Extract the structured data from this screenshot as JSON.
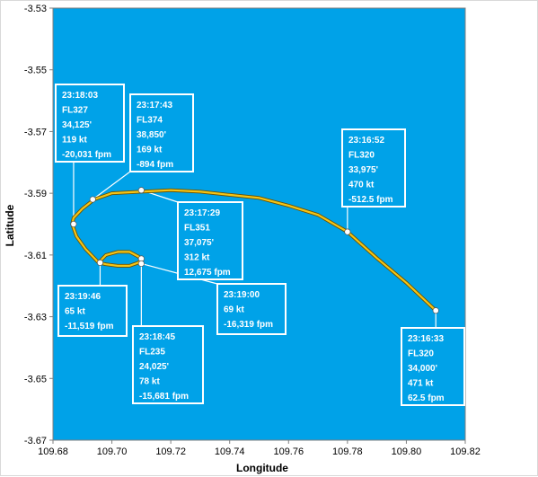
{
  "colors": {
    "plot_bg": "#00a2e8",
    "track": "#f4c416",
    "track_edge": "#6b5200",
    "callout_border": "#ffffff",
    "callout_fill": "#00a2e8",
    "point": "#ffffff"
  },
  "chart_data": {
    "type": "line",
    "title": "",
    "xlabel": "Longitude",
    "ylabel": "Latitude",
    "xlim": [
      109.68,
      109.82
    ],
    "ylim": [
      -3.67,
      -3.53
    ],
    "grid": false,
    "xticks": [
      "109.68",
      "109.70",
      "109.72",
      "109.74",
      "109.76",
      "109.78",
      "109.80",
      "109.82"
    ],
    "yticks": [
      "-3.53",
      "-3.55",
      "-3.57",
      "-3.59",
      "-3.61",
      "-3.63",
      "-3.65",
      "-3.67"
    ],
    "series": [
      {
        "x": [
          109.81,
          109.8,
          109.79,
          109.78,
          109.77,
          109.76,
          109.75,
          109.74,
          109.73,
          109.72,
          109.71,
          109.7,
          109.694,
          109.69,
          109.687,
          109.6865,
          109.688,
          109.691,
          109.694,
          109.6955,
          109.698,
          109.702,
          109.706,
          109.709,
          109.71,
          109.709,
          109.706,
          109.702,
          109.698,
          109.6955,
          109.6955
        ],
        "y": [
          -3.628,
          -3.619,
          -3.611,
          -3.6025,
          -3.597,
          -3.594,
          -3.5915,
          -3.5905,
          -3.5895,
          -3.589,
          -3.5895,
          -3.59,
          -3.592,
          -3.595,
          -3.598,
          -3.6,
          -3.604,
          -3.608,
          -3.611,
          -3.6125,
          -3.61,
          -3.609,
          -3.609,
          -3.6105,
          -3.6115,
          -3.6125,
          -3.6135,
          -3.6135,
          -3.613,
          -3.6125,
          -3.6125
        ]
      }
    ],
    "points": [
      {
        "x": 109.81,
        "y": -3.628
      },
      {
        "x": 109.78,
        "y": -3.6025
      },
      {
        "x": 109.71,
        "y": -3.589
      },
      {
        "x": 109.6935,
        "y": -3.592
      },
      {
        "x": 109.687,
        "y": -3.6
      },
      {
        "x": 109.71,
        "y": -3.6112
      },
      {
        "x": 109.71,
        "y": -3.6128
      },
      {
        "x": 109.696,
        "y": -3.6125
      }
    ],
    "annotations": [
      {
        "lines": [
          "23:16:33",
          "FL320",
          "34,000'",
          "471 kt",
          "62.5 fpm"
        ]
      },
      {
        "lines": [
          "23:16:52",
          "FL320",
          "33,975'",
          "470 kt",
          "-512.5 fpm"
        ]
      },
      {
        "lines": [
          "23:17:29",
          "FL351",
          "37,075'",
          "312 kt",
          "12,675 fpm"
        ]
      },
      {
        "lines": [
          "23:17:43",
          "FL374",
          "38,850'",
          "169 kt",
          "-894 fpm"
        ]
      },
      {
        "lines": [
          "23:18:03",
          "FL327",
          "34,125'",
          "119 kt",
          "-20,031 fpm"
        ]
      },
      {
        "lines": [
          "23:18:45",
          "FL235",
          "24,025'",
          "78 kt",
          "-15,681 fpm"
        ]
      },
      {
        "lines": [
          "23:19:00",
          "69 kt",
          "-16,319 fpm"
        ]
      },
      {
        "lines": [
          "23:19:46",
          "65 kt",
          "-11,519 fpm"
        ]
      }
    ]
  }
}
